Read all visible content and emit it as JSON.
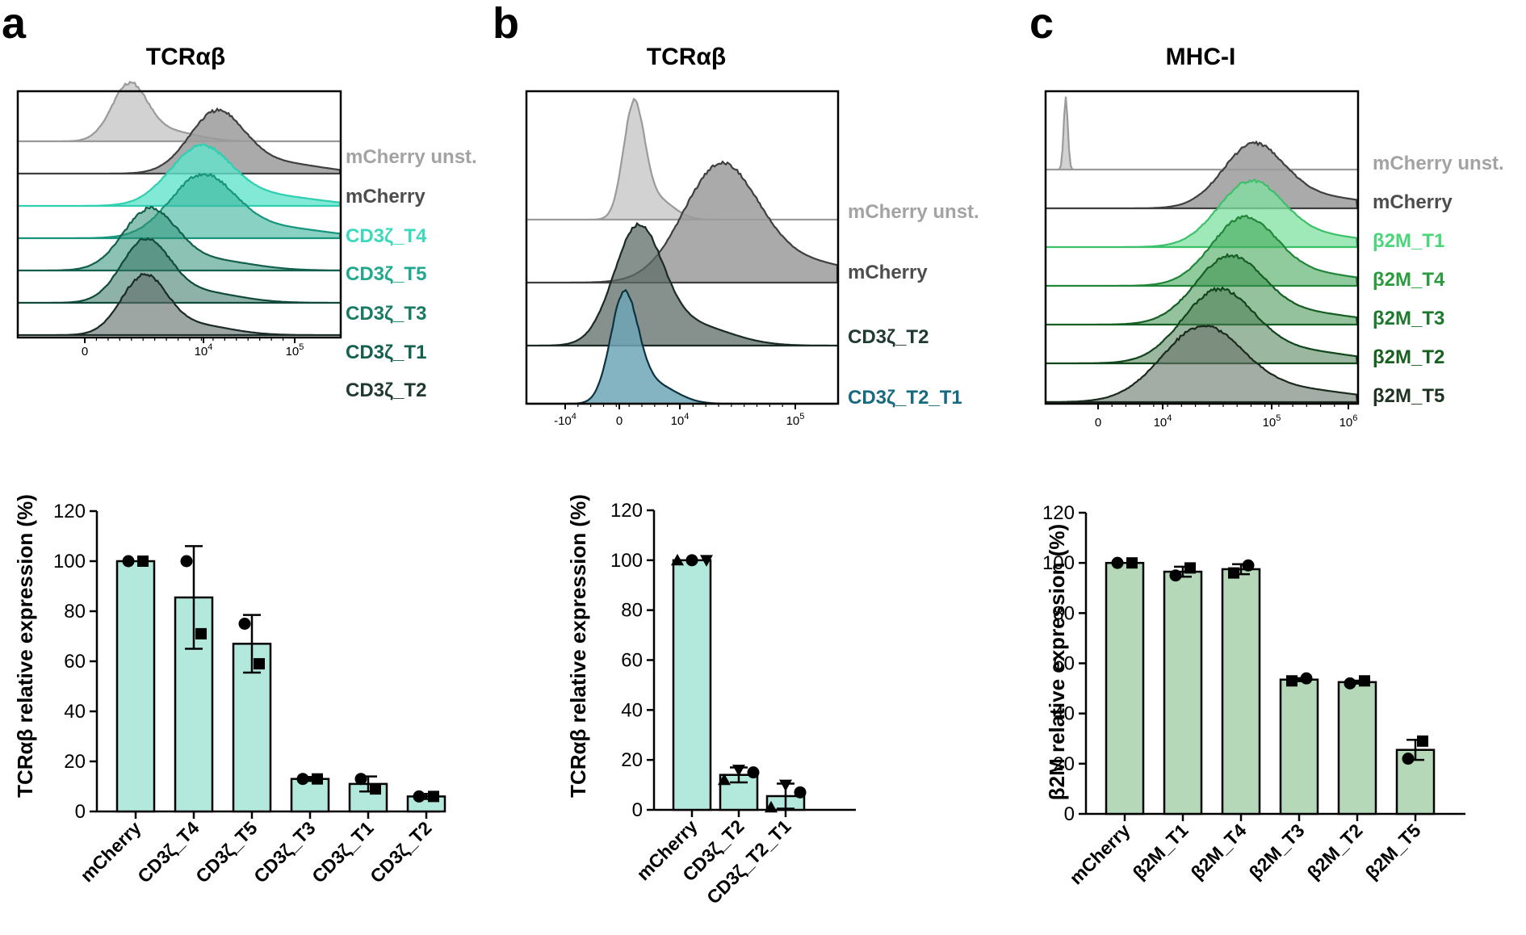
{
  "panels": [
    {
      "letter": "a",
      "hist_title": "TCRαβ",
      "hist_ticks": [
        {
          "label": "0",
          "value": 0
        },
        {
          "label": "10",
          "sup": "4",
          "value": 10000
        },
        {
          "label": "10",
          "sup": "5",
          "value": 100000
        }
      ],
      "tracks": [
        {
          "label": "mCherry unst.",
          "label_color": "#a3a3a3",
          "fill": "#d0d0d0",
          "stroke": "#9a9a9a",
          "fill_opacity": 0.95
        },
        {
          "label": "mCherry",
          "label_color": "#4d4d4d",
          "fill": "#9b9b9b",
          "stroke": "#3f3f3f",
          "fill_opacity": 0.85
        },
        {
          "label": "CD3ζ_T4",
          "label_color": "#3dd9bd",
          "fill": "#62e3cb",
          "stroke": "#2fcfb1",
          "fill_opacity": 0.8
        },
        {
          "label": "CD3ζ_T5",
          "label_color": "#20a98d",
          "fill": "#3bb49b",
          "stroke": "#17957c",
          "fill_opacity": 0.6
        },
        {
          "label": "CD3ζ_T3",
          "label_color": "#1a7b64",
          "fill": "#2e8f77",
          "stroke": "#135f4d",
          "fill_opacity": 0.55
        },
        {
          "label": "CD3ζ_T1",
          "label_color": "#14604c",
          "fill": "#337260",
          "stroke": "#0f4a3b",
          "fill_opacity": 0.55
        },
        {
          "label": "CD3ζ_T2",
          "label_color": "#203a33",
          "fill": "#5d6b67",
          "stroke": "#1a2a26",
          "fill_opacity": 0.6
        }
      ]
    },
    {
      "letter": "b",
      "hist_title": "TCRαβ",
      "hist_ticks": [
        {
          "label": "-10",
          "sup": "4",
          "value": -10000
        },
        {
          "label": "0",
          "value": 0
        },
        {
          "label": "10",
          "sup": "4",
          "value": 10000
        },
        {
          "label": "10",
          "sup": "5",
          "value": 100000
        }
      ],
      "tracks": [
        {
          "label": "mCherry unst.",
          "label_color": "#a3a3a3",
          "fill": "#d0d0d0",
          "stroke": "#9a9a9a",
          "fill_opacity": 0.95
        },
        {
          "label": "mCherry",
          "label_color": "#4d4d4d",
          "fill": "#9b9b9b",
          "stroke": "#3f3f3f",
          "fill_opacity": 0.85
        },
        {
          "label": "CD3ζ_T2",
          "label_color": "#203a33",
          "fill": "#5d6b67",
          "stroke": "#1a2a26",
          "fill_opacity": 0.75
        },
        {
          "label": "CD3ζ_T2_T1",
          "label_color": "#176a80",
          "fill": "#6fa6b6",
          "stroke": "#0e3340",
          "fill_opacity": 0.85
        }
      ]
    },
    {
      "letter": "c",
      "hist_title": "MHC-I",
      "hist_ticks": [
        {
          "label": "0",
          "value": 0
        },
        {
          "label": "10",
          "sup": "4",
          "value": 10000
        },
        {
          "label": "10",
          "sup": "5",
          "value": 100000
        },
        {
          "label": "10",
          "sup": "6",
          "value": 1000000
        }
      ],
      "tracks": [
        {
          "label": "mCherry unst.",
          "label_color": "#a3a3a3",
          "fill": "#d0d0d0",
          "stroke": "#9a9a9a",
          "fill_opacity": 0.95
        },
        {
          "label": "mCherry",
          "label_color": "#4d4d4d",
          "fill": "#9b9b9b",
          "stroke": "#3f3f3f",
          "fill_opacity": 0.85
        },
        {
          "label": "β2M_T1",
          "label_color": "#4bd67a",
          "fill": "#7fe09f",
          "stroke": "#3cc06a",
          "fill_opacity": 0.75
        },
        {
          "label": "β2M_T4",
          "label_color": "#2a9c3e",
          "fill": "#45a85a",
          "stroke": "#21863a",
          "fill_opacity": 0.6
        },
        {
          "label": "β2M_T3",
          "label_color": "#1d7a2d",
          "fill": "#3b8f4a",
          "stroke": "#155e24",
          "fill_opacity": 0.55
        },
        {
          "label": "β2M_T2",
          "label_color": "#17601f",
          "fill": "#4a7b51",
          "stroke": "#11451a",
          "fill_opacity": 0.55
        },
        {
          "label": "β2M_T5",
          "label_color": "#1f3322",
          "fill": "#67746a",
          "stroke": "#1a2a1d",
          "fill_opacity": 0.6
        }
      ]
    }
  ],
  "chart_data": [
    {
      "panel": "a",
      "type": "bar",
      "ylabel": "TCRαβ relative expression (%)",
      "ylim": [
        0,
        120
      ],
      "yticks": [
        0,
        20,
        40,
        60,
        80,
        100,
        120
      ],
      "bar_color": "#b3e8dd",
      "categories": [
        "mCherry",
        "CD3ζ_T4",
        "CD3ζ_T5",
        "CD3ζ_T3",
        "CD3ζ_T1",
        "CD3ζ_T2"
      ],
      "values": [
        100,
        85.5,
        67,
        13,
        11,
        6
      ],
      "error": [
        0,
        20.5,
        11.5,
        0.8,
        3,
        1
      ],
      "points": [
        [
          {
            "marker": "circle",
            "y": 100
          },
          {
            "marker": "square",
            "y": 100
          }
        ],
        [
          {
            "marker": "circle",
            "y": 100
          },
          {
            "marker": "square",
            "y": 71
          }
        ],
        [
          {
            "marker": "circle",
            "y": 75
          },
          {
            "marker": "square",
            "y": 59
          }
        ],
        [
          {
            "marker": "circle",
            "y": 13
          },
          {
            "marker": "square",
            "y": 13
          }
        ],
        [
          {
            "marker": "circle",
            "y": 13
          },
          {
            "marker": "square",
            "y": 9
          }
        ],
        [
          {
            "marker": "circle",
            "y": 6
          },
          {
            "marker": "square",
            "y": 6
          }
        ]
      ]
    },
    {
      "panel": "b",
      "type": "bar",
      "ylabel": "TCRαβ relative expression (%)",
      "ylim": [
        0,
        120
      ],
      "yticks": [
        0,
        20,
        40,
        60,
        80,
        100,
        120
      ],
      "bar_color": "#b3e8dd",
      "categories": [
        "mCherry",
        "CD3ζ_T2",
        "CD3ζ_T2_T1"
      ],
      "values": [
        100,
        14,
        5.5
      ],
      "error": [
        0,
        3,
        5
      ],
      "points": [
        [
          {
            "marker": "triangle-up",
            "y": 100
          },
          {
            "marker": "circle",
            "y": 100
          },
          {
            "marker": "triangle-down",
            "y": 100
          }
        ],
        [
          {
            "marker": "triangle-up",
            "y": 12
          },
          {
            "marker": "triangle-down",
            "y": 16
          },
          {
            "marker": "circle",
            "y": 15
          }
        ],
        [
          {
            "marker": "triangle-up",
            "y": 1
          },
          {
            "marker": "triangle-down",
            "y": 10
          },
          {
            "marker": "circle",
            "y": 7
          }
        ]
      ]
    },
    {
      "panel": "c",
      "type": "bar",
      "ylabel": "β2M relative expression (%)",
      "ylim": [
        0,
        120
      ],
      "yticks": [
        0,
        20,
        40,
        60,
        80,
        100,
        120
      ],
      "bar_color": "#b5d8b9",
      "categories": [
        "mCherry",
        "β2M_T1",
        "β2M_T4",
        "β2M_T3",
        "β2M_T2",
        "β2M_T5"
      ],
      "values": [
        100,
        96.5,
        97.5,
        53.5,
        52.5,
        25.5
      ],
      "error": [
        0,
        2,
        2,
        0.6,
        0.6,
        4
      ],
      "points": [
        [
          {
            "marker": "circle",
            "y": 100
          },
          {
            "marker": "square",
            "y": 100
          }
        ],
        [
          {
            "marker": "circle",
            "y": 95
          },
          {
            "marker": "square",
            "y": 98
          }
        ],
        [
          {
            "marker": "square",
            "y": 96
          },
          {
            "marker": "circle",
            "y": 99
          }
        ],
        [
          {
            "marker": "square",
            "y": 53
          },
          {
            "marker": "circle",
            "y": 54
          }
        ],
        [
          {
            "marker": "circle",
            "y": 52
          },
          {
            "marker": "square",
            "y": 53
          }
        ],
        [
          {
            "marker": "circle",
            "y": 22
          },
          {
            "marker": "square",
            "y": 29
          }
        ]
      ]
    }
  ]
}
